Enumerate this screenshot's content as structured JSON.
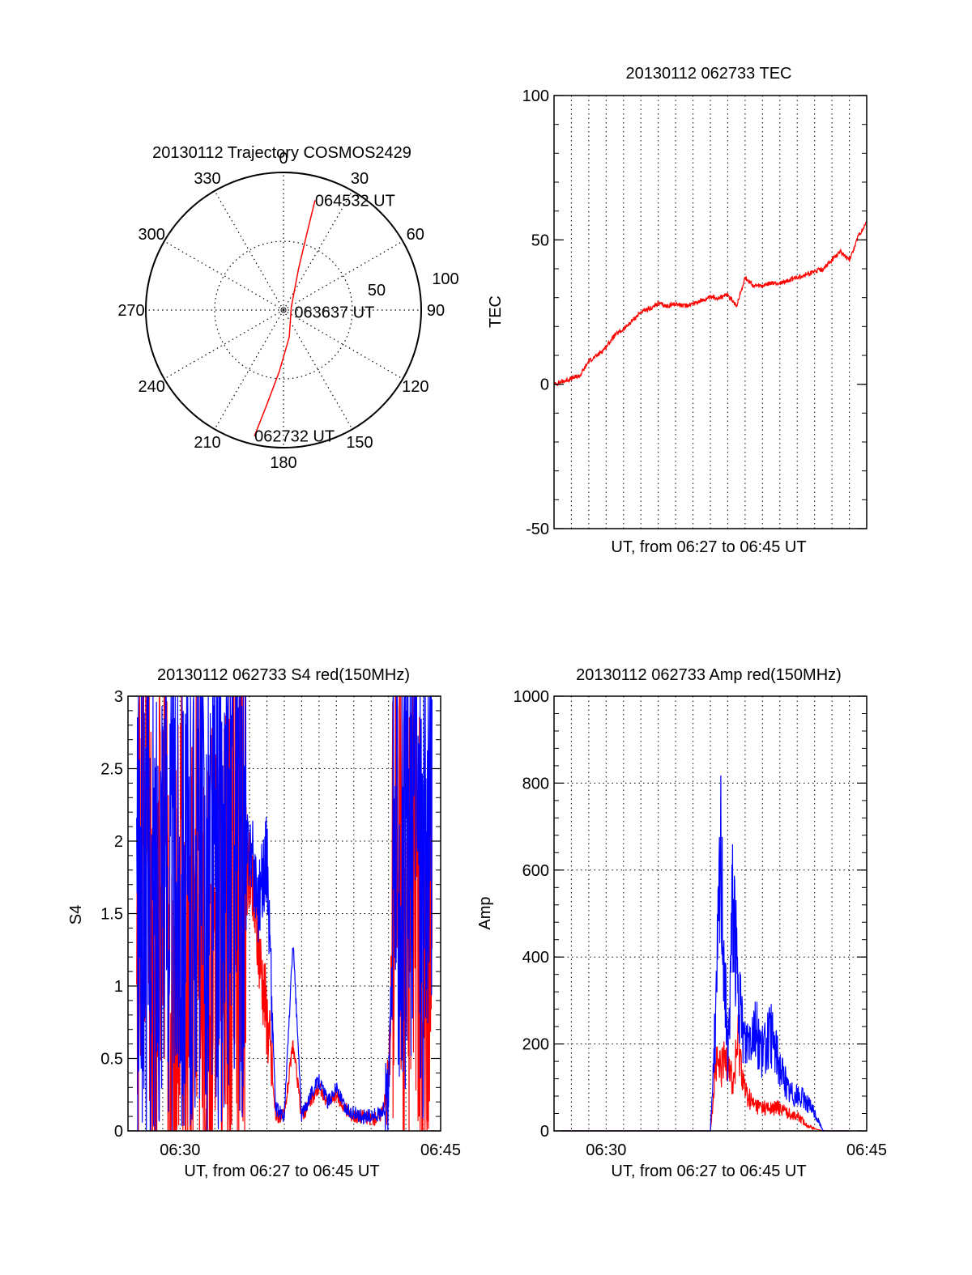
{
  "colors": {
    "red": "#ff0000",
    "blue": "#0000ff",
    "axis": "#000000",
    "grid": "#000000"
  },
  "chart_data": [
    {
      "type": "polar",
      "title": "20130112 Trajectory COSMOS2429",
      "azimuth_labels": [
        "0",
        "30",
        "60",
        "90",
        "120",
        "150",
        "180",
        "210",
        "240",
        "270",
        "300",
        "330"
      ],
      "radial_labels": [
        "50",
        "100"
      ],
      "rlim": [
        0,
        100
      ],
      "series": [
        {
          "color": "red",
          "points": [
            {
              "az": 193,
              "r": 94
            },
            {
              "az": 190,
              "r": 70
            },
            {
              "az": 184,
              "r": 45
            },
            {
              "az": 168,
              "r": 20
            },
            {
              "az": 70,
              "r": 6
            },
            {
              "az": 20,
              "r": 32
            },
            {
              "az": 17,
              "r": 58
            },
            {
              "az": 16,
              "r": 83
            }
          ]
        }
      ],
      "annotations": [
        {
          "text": "064532 UT",
          "az": 16,
          "r": 83
        },
        {
          "text": "063637 UT",
          "az": 100,
          "r": 8
        },
        {
          "text": "062732 UT",
          "az": 193,
          "r": 94
        }
      ]
    },
    {
      "type": "line",
      "title": "20130112 062733 TEC",
      "xlabel": "UT, from 06:27 to 06:45 UT",
      "ylabel": "TEC",
      "xlim": [
        "06:27",
        "06:45"
      ],
      "ylim": [
        -50,
        100
      ],
      "yticks": [
        "-50",
        "0",
        "50",
        "100"
      ],
      "grid": "vertical dotted",
      "series": [
        {
          "color": "red",
          "x": [
            "06:27.0",
            "06:27.5",
            "06:28.0",
            "06:28.5",
            "06:29.0",
            "06:29.5",
            "06:30.0",
            "06:30.5",
            "06:31.0",
            "06:31.5",
            "06:32.0",
            "06:32.5",
            "06:33.0",
            "06:33.5",
            "06:34.0",
            "06:34.5",
            "06:35.0",
            "06:35.5",
            "06:36.0",
            "06:36.5",
            "06:37.0",
            "06:37.5",
            "06:38.0",
            "06:38.5",
            "06:39.0",
            "06:39.5",
            "06:40.0",
            "06:40.5",
            "06:41.0",
            "06:41.5",
            "06:42.0",
            "06:42.5",
            "06:43.0",
            "06:43.5",
            "06:44.0",
            "06:44.5",
            "06:45.0"
          ],
          "values": [
            0,
            1,
            2,
            3,
            8,
            10,
            13,
            17,
            19,
            22,
            25,
            26,
            28,
            27,
            28,
            27,
            28,
            29,
            30,
            30,
            31,
            27,
            37,
            34,
            34,
            35,
            35,
            36,
            37,
            38,
            39,
            40,
            43,
            46,
            43,
            51,
            56
          ]
        }
      ]
    },
    {
      "type": "line",
      "title": "20130112 062733 S4 red(150MHz)",
      "xlabel": "UT, from 06:27 to 06:45 UT",
      "ylabel": "S4",
      "xlim": [
        "06:27",
        "06:45"
      ],
      "ylim": [
        0,
        3
      ],
      "xticks": [
        "06:30",
        "06:45"
      ],
      "yticks": [
        "0",
        "0.5",
        "1",
        "1.5",
        "2",
        "2.5",
        "3"
      ],
      "grid": "dotted",
      "series": [
        {
          "color": "red",
          "x": [
            "06:27.5",
            "06:28.0",
            "06:28.5",
            "06:29.0",
            "06:29.5",
            "06:30.0",
            "06:30.5",
            "06:31.0",
            "06:31.5",
            "06:32.0",
            "06:32.5",
            "06:33.0",
            "06:33.5",
            "06:34.0",
            "06:34.5",
            "06:35.0",
            "06:35.5",
            "06:36.0",
            "06:36.5",
            "06:37.0",
            "06:37.5",
            "06:38.0",
            "06:38.5",
            "06:39.0",
            "06:39.5",
            "06:40.0",
            "06:40.5",
            "06:41.0",
            "06:41.5",
            "06:42.0",
            "06:42.5",
            "06:43.0",
            "06:43.5",
            "06:44.0",
            "06:44.5"
          ],
          "values": [
            1.2,
            2.5,
            0.2,
            2.6,
            0.1,
            2.0,
            0.3,
            1.9,
            0.5,
            1.7,
            1.1,
            1.6,
            1.5,
            1.8,
            1.3,
            0.8,
            0.1,
            0.1,
            0.6,
            0.1,
            0.2,
            0.3,
            0.2,
            0.25,
            0.15,
            0.1,
            0.1,
            0.08,
            0.1,
            0.3,
            2.7,
            1.0,
            2.4,
            0.2,
            2.5
          ]
        },
        {
          "color": "blue",
          "x": [
            "06:27.5",
            "06:28.0",
            "06:28.5",
            "06:29.0",
            "06:29.5",
            "06:30.0",
            "06:30.5",
            "06:31.0",
            "06:31.5",
            "06:32.0",
            "06:32.5",
            "06:33.0",
            "06:33.5",
            "06:34.0",
            "06:34.5",
            "06:35.0",
            "06:35.5",
            "06:36.0",
            "06:36.5",
            "06:37.0",
            "06:37.5",
            "06:38.0",
            "06:38.5",
            "06:39.0",
            "06:39.5",
            "06:40.0",
            "06:40.5",
            "06:41.0",
            "06:41.5",
            "06:42.0",
            "06:42.5",
            "06:43.0",
            "06:43.5",
            "06:44.0",
            "06:44.5"
          ],
          "values": [
            1.5,
            1.8,
            1.3,
            2.2,
            1.6,
            1.9,
            1.4,
            2.1,
            1.7,
            1.9,
            1.5,
            2.3,
            1.8,
            2.0,
            1.6,
            1.9,
            0.15,
            0.1,
            1.3,
            0.1,
            0.25,
            0.35,
            0.2,
            0.3,
            0.15,
            0.12,
            0.1,
            0.1,
            0.12,
            0.2,
            2.3,
            1.6,
            2.6,
            1.8,
            2.4
          ]
        }
      ]
    },
    {
      "type": "line",
      "title": "20130112 062733 Amp red(150MHz)",
      "xlabel": "UT, from 06:27 to 06:45 UT",
      "ylabel": "Amp",
      "xlim": [
        "06:27",
        "06:45"
      ],
      "ylim": [
        0,
        1000
      ],
      "xticks": [
        "06:30",
        "06:45"
      ],
      "yticks": [
        "0",
        "200",
        "400",
        "600",
        "800",
        "1000"
      ],
      "grid": "dotted",
      "series": [
        {
          "color": "red",
          "x": [
            "06:27.5",
            "06:29.0",
            "06:31.0",
            "06:33.0",
            "06:35.0",
            "06:36.0",
            "06:36.3",
            "06:36.6",
            "06:37.0",
            "06:37.3",
            "06:37.6",
            "06:38.0",
            "06:38.5",
            "06:39.0",
            "06:39.5",
            "06:40.0",
            "06:40.5",
            "06:41.0",
            "06:41.5",
            "06:42.0",
            "06:42.5",
            "06:43.0",
            "06:44.0"
          ],
          "values": [
            0,
            0,
            0,
            0,
            0,
            0,
            150,
            140,
            180,
            100,
            210,
            90,
            60,
            55,
            50,
            55,
            40,
            35,
            15,
            5,
            0,
            0,
            0
          ]
        },
        {
          "color": "blue",
          "x": [
            "06:27.5",
            "06:29.0",
            "06:31.0",
            "06:33.0",
            "06:35.0",
            "06:36.0",
            "06:36.3",
            "06:36.6",
            "06:37.0",
            "06:37.3",
            "06:37.6",
            "06:38.0",
            "06:38.5",
            "06:39.0",
            "06:39.5",
            "06:40.0",
            "06:40.5",
            "06:41.0",
            "06:41.5",
            "06:42.0",
            "06:42.5",
            "06:43.0",
            "06:44.0"
          ],
          "values": [
            0,
            0,
            0,
            0,
            0,
            0,
            250,
            640,
            150,
            560,
            300,
            200,
            250,
            180,
            220,
            150,
            90,
            80,
            70,
            40,
            0,
            0,
            0
          ]
        }
      ]
    }
  ]
}
